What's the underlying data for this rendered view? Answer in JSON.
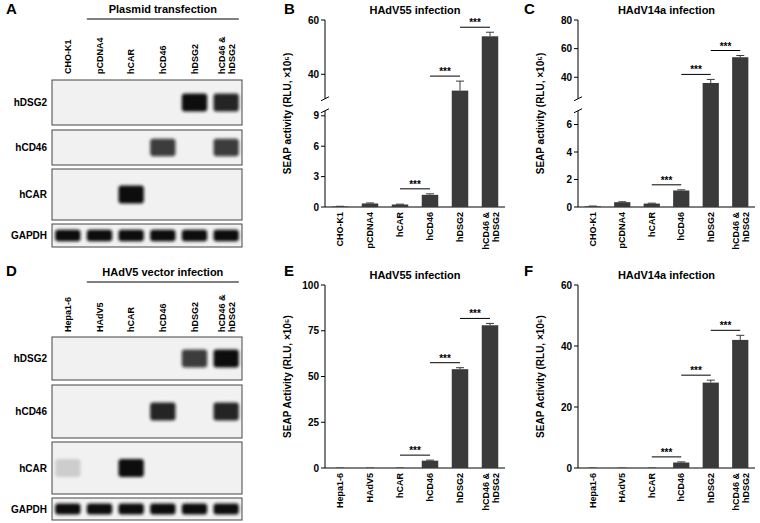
{
  "chart_data": [
    {
      "type": "bar",
      "panel_label": "B",
      "title": "HAdV55 infection",
      "ylabel": "SEAP activity (RLU, ×10⁵)",
      "categories": [
        "CHO-K1",
        "pCDNA4",
        "hCAR",
        "hCD46",
        "hDSG2",
        "hCD46 & hDSG2"
      ],
      "values": [
        0.05,
        0.35,
        0.25,
        1.2,
        34,
        54
      ],
      "errors": [
        0.02,
        0.05,
        0.03,
        0.1,
        3.5,
        1.5
      ],
      "color": "#3a3a3a",
      "ylim": [
        0,
        60
      ],
      "y_break": [
        9.5,
        31
      ],
      "yticks": [
        0,
        3,
        6,
        9,
        40,
        60
      ],
      "significance": [
        {
          "between": [
            "hCAR",
            "hCD46"
          ],
          "label": "***"
        },
        {
          "between": [
            "hCD46",
            "hDSG2"
          ],
          "label": "***"
        },
        {
          "between": [
            "hDSG2",
            "hCD46 & hDSG2"
          ],
          "label": "***"
        }
      ]
    },
    {
      "type": "bar",
      "panel_label": "C",
      "title": "HAdV14a infection",
      "ylabel": "SEAP activity (RLU, ×10⁵)",
      "categories": [
        "CHO-K1",
        "pCDNA4",
        "hCAR",
        "hCD46",
        "hDSG2",
        "hCD46 & hDSG2"
      ],
      "values": [
        0.05,
        0.35,
        0.25,
        1.2,
        36,
        54
      ],
      "errors": [
        0.02,
        0.03,
        0.03,
        0.05,
        2.5,
        1.2
      ],
      "color": "#3a3a3a",
      "ylim": [
        0,
        80
      ],
      "y_break": [
        7,
        25
      ],
      "yticks": [
        0,
        2,
        4,
        6,
        40,
        60,
        80
      ],
      "significance": [
        {
          "between": [
            "hCAR",
            "hCD46"
          ],
          "label": "***"
        },
        {
          "between": [
            "hCD46",
            "hDSG2"
          ],
          "label": "***"
        },
        {
          "between": [
            "hDSG2",
            "hCD46 & hDSG2"
          ],
          "label": "***"
        }
      ]
    },
    {
      "type": "bar",
      "panel_label": "E",
      "title": "HAdV55 infection",
      "ylabel": "SEAP Activity (RLU, ×10⁵)",
      "categories": [
        "Hepa1-6",
        "HAdV5",
        "hCAR",
        "hCD46",
        "hDSG2",
        "hCD46 & hDSG2"
      ],
      "values": [
        0,
        0,
        0,
        4,
        54,
        78
      ],
      "errors": [
        0,
        0,
        0,
        0.3,
        0.8,
        1
      ],
      "color": "#3a3a3a",
      "ylim": [
        0,
        100
      ],
      "yticks": [
        0,
        25,
        50,
        75,
        100
      ],
      "significance": [
        {
          "between": [
            "hCAR",
            "hCD46"
          ],
          "label": "***"
        },
        {
          "between": [
            "hCD46",
            "hDSG2"
          ],
          "label": "***"
        },
        {
          "between": [
            "hDSG2",
            "hCD46 & hDSG2"
          ],
          "label": "***"
        }
      ]
    },
    {
      "type": "bar",
      "panel_label": "F",
      "title": "HAdV14a infection",
      "ylabel": "SEAP Activity (RLU, ×10⁵)",
      "categories": [
        "Hepa1-6",
        "HAdV5",
        "hCAR",
        "hCD46",
        "hDSG2",
        "hCD46 & hDSG2"
      ],
      "values": [
        0,
        0,
        0,
        1.8,
        28,
        42
      ],
      "errors": [
        0,
        0,
        0,
        0.2,
        0.8,
        1.5
      ],
      "color": "#3a3a3a",
      "ylim": [
        0,
        60
      ],
      "yticks": [
        0,
        20,
        40,
        60
      ],
      "significance": [
        {
          "between": [
            "hCAR",
            "hCD46"
          ],
          "label": "***"
        },
        {
          "between": [
            "hCD46",
            "hDSG2"
          ],
          "label": "***"
        },
        {
          "between": [
            "hDSG2",
            "hCD46 & hDSG2"
          ],
          "label": "***"
        }
      ]
    }
  ],
  "blots": [
    {
      "panel_label": "A",
      "header": "Plasmid transfection",
      "header_lanes": [
        "pCDNA4",
        "hCD46 & hDSG2"
      ],
      "lanes": [
        "CHO-K1",
        "pCDNA4",
        "hCAR",
        "hCD46",
        "hDSG2",
        "hCD46 & hDSG2"
      ],
      "rows": [
        {
          "name": "hDSG2",
          "bands": [
            0,
            0,
            0,
            0,
            1,
            0.9
          ]
        },
        {
          "name": "hCD46",
          "bands": [
            0,
            0,
            0,
            0.8,
            0,
            0.8
          ]
        },
        {
          "name": "hCAR",
          "bands": [
            0,
            0,
            1,
            0,
            0,
            0
          ]
        },
        {
          "name": "GAPDH",
          "bands": [
            1,
            1,
            1,
            1,
            1,
            1
          ]
        }
      ]
    },
    {
      "panel_label": "D",
      "header": "HAdV5 vector infection",
      "header_lanes": [
        "HAdV5",
        "hCD46 & hDSG2"
      ],
      "lanes": [
        "Hepa1-6",
        "HAdV5",
        "hCAR",
        "hCD46",
        "hDSG2",
        "hCD46 & hDSG2"
      ],
      "rows": [
        {
          "name": "hDSG2",
          "bands": [
            0,
            0,
            0,
            0,
            0.8,
            1
          ]
        },
        {
          "name": "hCD46",
          "bands": [
            0,
            0,
            0,
            0.9,
            0,
            0.9
          ]
        },
        {
          "name": "hCAR",
          "bands": [
            0.15,
            0,
            1,
            0,
            0,
            0
          ]
        },
        {
          "name": "GAPDH",
          "bands": [
            1,
            1,
            1,
            1,
            1,
            1
          ]
        }
      ]
    }
  ]
}
